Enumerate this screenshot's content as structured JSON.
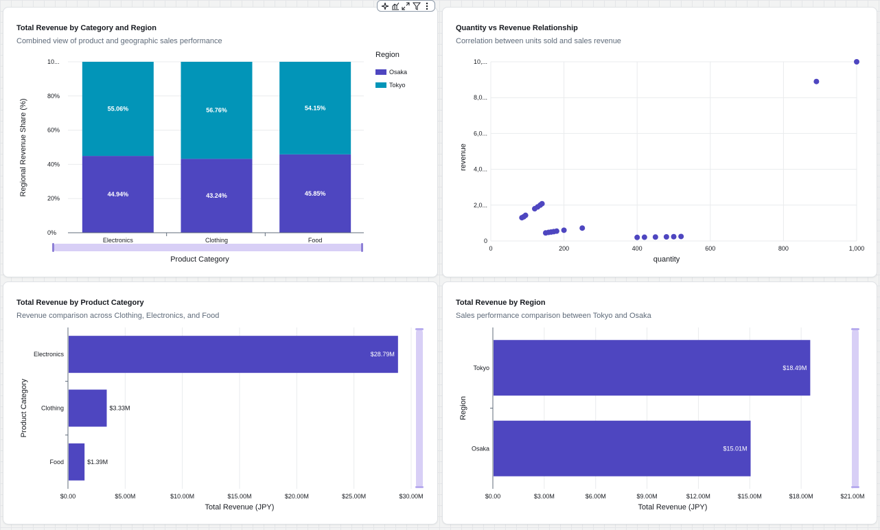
{
  "colors": {
    "osaka": "#4e46c0",
    "tokyo": "#0295b8",
    "bar": "#4e46c0",
    "scrollbar": "#d8cff6",
    "grid": "#e9ebed"
  },
  "toolbar": {
    "icons": [
      "sparkle-icon",
      "chart-type-icon",
      "expand-icon",
      "filter-icon",
      "more-icon"
    ]
  },
  "panel1": {
    "title": "Total Revenue by Category and Region",
    "subtitle": "Combined view of product and geographic sales performance",
    "legend_title": "Region",
    "chart_data": {
      "type": "bar",
      "stacked": true,
      "categories": [
        "Electronics",
        "Clothing",
        "Food"
      ],
      "series": [
        {
          "name": "Osaka",
          "values": [
            44.94,
            43.24,
            45.85
          ],
          "labels": [
            "44.94%",
            "43.24%",
            "45.85%"
          ]
        },
        {
          "name": "Tokyo",
          "values": [
            55.06,
            56.76,
            54.15
          ],
          "labels": [
            "55.06%",
            "56.76%",
            "54.15%"
          ]
        }
      ],
      "y_ticks": [
        "0%",
        "20%",
        "40%",
        "60%",
        "80%",
        "10..."
      ],
      "ylim": [
        0,
        100
      ],
      "xlabel": "Product Category",
      "ylabel": "Regional Revenue Share (%)",
      "legend": "top-right"
    }
  },
  "panel2": {
    "title": "Quantity vs Revenue Relationship",
    "subtitle": "Correlation between units sold and sales revenue",
    "chart_data": {
      "type": "scatter",
      "x": [
        85,
        90,
        95,
        120,
        128,
        135,
        140,
        150,
        158,
        165,
        172,
        180,
        200,
        250,
        400,
        420,
        450,
        480,
        500,
        520,
        890,
        1000
      ],
      "y": [
        1300,
        1350,
        1430,
        1800,
        1900,
        2000,
        2080,
        450,
        480,
        500,
        520,
        550,
        600,
        720,
        200,
        210,
        220,
        230,
        240,
        250,
        8900,
        10000
      ],
      "x_ticks": [
        "0",
        "200",
        "400",
        "600",
        "800",
        "1,000"
      ],
      "y_ticks": [
        "0",
        "2,0...",
        "4,0...",
        "6,0...",
        "8,0...",
        "10,..."
      ],
      "xlim": [
        0,
        1000
      ],
      "ylim": [
        0,
        10000
      ],
      "xlabel": "quantity",
      "ylabel": "revenue"
    }
  },
  "panel3": {
    "title": "Total Revenue by Product Category",
    "subtitle": "Revenue comparison across Clothing, Electronics, and Food",
    "chart_data": {
      "type": "bar",
      "orientation": "horizontal",
      "categories": [
        "Electronics",
        "Clothing",
        "Food"
      ],
      "values": [
        28.79,
        3.33,
        1.39
      ],
      "labels": [
        "$28.79M",
        "$3.33M",
        "$1.39M"
      ],
      "x_ticks": [
        "$0.00",
        "$5.00M",
        "$10.00M",
        "$15.00M",
        "$20.00M",
        "$25.00M",
        "$30.00M"
      ],
      "xlim": [
        0,
        30
      ],
      "xlabel": "Total Revenue (JPY)",
      "ylabel": "Product Category"
    }
  },
  "panel4": {
    "title": "Total Revenue by Region",
    "subtitle": "Sales performance comparison between Tokyo and Osaka",
    "chart_data": {
      "type": "bar",
      "orientation": "horizontal",
      "categories": [
        "Tokyo",
        "Osaka"
      ],
      "values": [
        18.49,
        15.01
      ],
      "labels": [
        "$18.49M",
        "$15.01M"
      ],
      "x_ticks": [
        "$0.00",
        "$3.00M",
        "$6.00M",
        "$9.00M",
        "$12.00M",
        "$15.00M",
        "$18.00M",
        "$21.00M"
      ],
      "xlim": [
        0,
        21
      ],
      "xlabel": "Total Revenue (JPY)",
      "ylabel": "Region"
    }
  }
}
